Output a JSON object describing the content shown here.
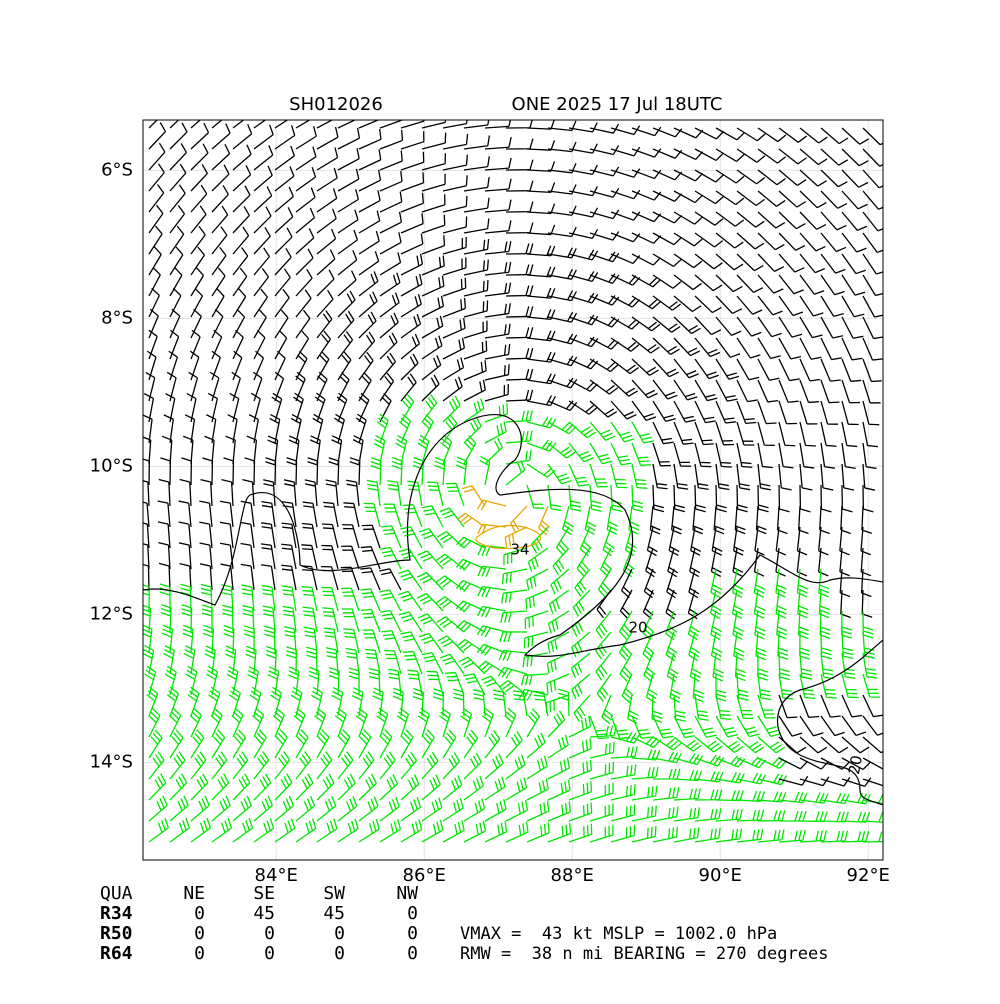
{
  "chart_data": {
    "type": "map",
    "title_left": "SH012026",
    "title_right": "ONE 2025 17 Jul 18UTC",
    "xlim": [
      82.2,
      92.2
    ],
    "ylim": [
      -15.32,
      -5.32
    ],
    "xticks": [
      {
        "value": 84,
        "label": "84°E"
      },
      {
        "value": 86,
        "label": "86°E"
      },
      {
        "value": 88,
        "label": "88°E"
      },
      {
        "value": 90,
        "label": "90°E"
      },
      {
        "value": 92,
        "label": "92°E"
      }
    ],
    "yticks": [
      {
        "value": -6,
        "label": "6°S"
      },
      {
        "value": -8,
        "label": "8°S"
      },
      {
        "value": -10,
        "label": "10°S"
      },
      {
        "value": -12,
        "label": "12°S"
      },
      {
        "value": -14,
        "label": "14°S"
      }
    ],
    "grid": true,
    "contour_labels": [
      "34",
      "20",
      "20"
    ]
  },
  "table": {
    "header": [
      "QUA",
      "NE",
      "SE",
      "SW",
      "NW"
    ],
    "rows": [
      [
        "R34",
        "0",
        "45",
        "45",
        "0"
      ],
      [
        "R50",
        "0",
        "0",
        "0",
        "0"
      ],
      [
        "R64",
        "0",
        "0",
        "0",
        "0"
      ]
    ]
  },
  "info": [
    "VMAX =  43 kt MSLP = 1002.0 hPa",
    "RMW =  38 n mi BEARING = 270 degrees"
  ]
}
